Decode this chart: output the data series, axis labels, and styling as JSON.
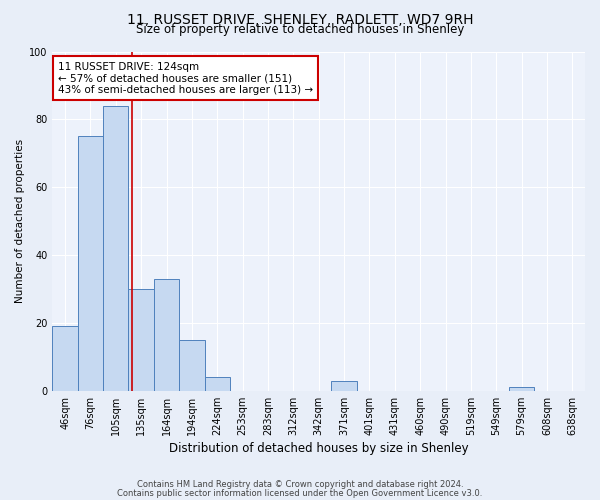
{
  "title_line1": "11, RUSSET DRIVE, SHENLEY, RADLETT, WD7 9RH",
  "title_line2": "Size of property relative to detached houses in Shenley",
  "xlabel": "Distribution of detached houses by size in Shenley",
  "ylabel": "Number of detached properties",
  "bin_labels": [
    "46sqm",
    "76sqm",
    "105sqm",
    "135sqm",
    "164sqm",
    "194sqm",
    "224sqm",
    "253sqm",
    "283sqm",
    "312sqm",
    "342sqm",
    "371sqm",
    "401sqm",
    "431sqm",
    "460sqm",
    "490sqm",
    "519sqm",
    "549sqm",
    "579sqm",
    "608sqm",
    "638sqm"
  ],
  "bar_heights": [
    19,
    75,
    84,
    30,
    33,
    15,
    4,
    0,
    0,
    0,
    0,
    3,
    0,
    0,
    0,
    0,
    0,
    0,
    1,
    0,
    0
  ],
  "bar_color": "#c6d9f1",
  "bar_edge_color": "#4f81bd",
  "property_line_x": 2.62,
  "annotation_text": "11 RUSSET DRIVE: 124sqm\n← 57% of detached houses are smaller (151)\n43% of semi-detached houses are larger (113) →",
  "annotation_box_color": "#ffffff",
  "annotation_box_edge_color": "#cc0000",
  "vline_color": "#cc0000",
  "ylim": [
    0,
    100
  ],
  "yticks": [
    0,
    20,
    40,
    60,
    80,
    100
  ],
  "footer_line1": "Contains HM Land Registry data © Crown copyright and database right 2024.",
  "footer_line2": "Contains public sector information licensed under the Open Government Licence v3.0.",
  "bg_color": "#e8eef8",
  "plot_bg_color": "#edf2fb",
  "grid_color": "#ffffff",
  "title1_fontsize": 10,
  "title2_fontsize": 8.5,
  "xlabel_fontsize": 8.5,
  "ylabel_fontsize": 7.5,
  "tick_fontsize": 7,
  "annotation_fontsize": 7.5,
  "footer_fontsize": 6
}
